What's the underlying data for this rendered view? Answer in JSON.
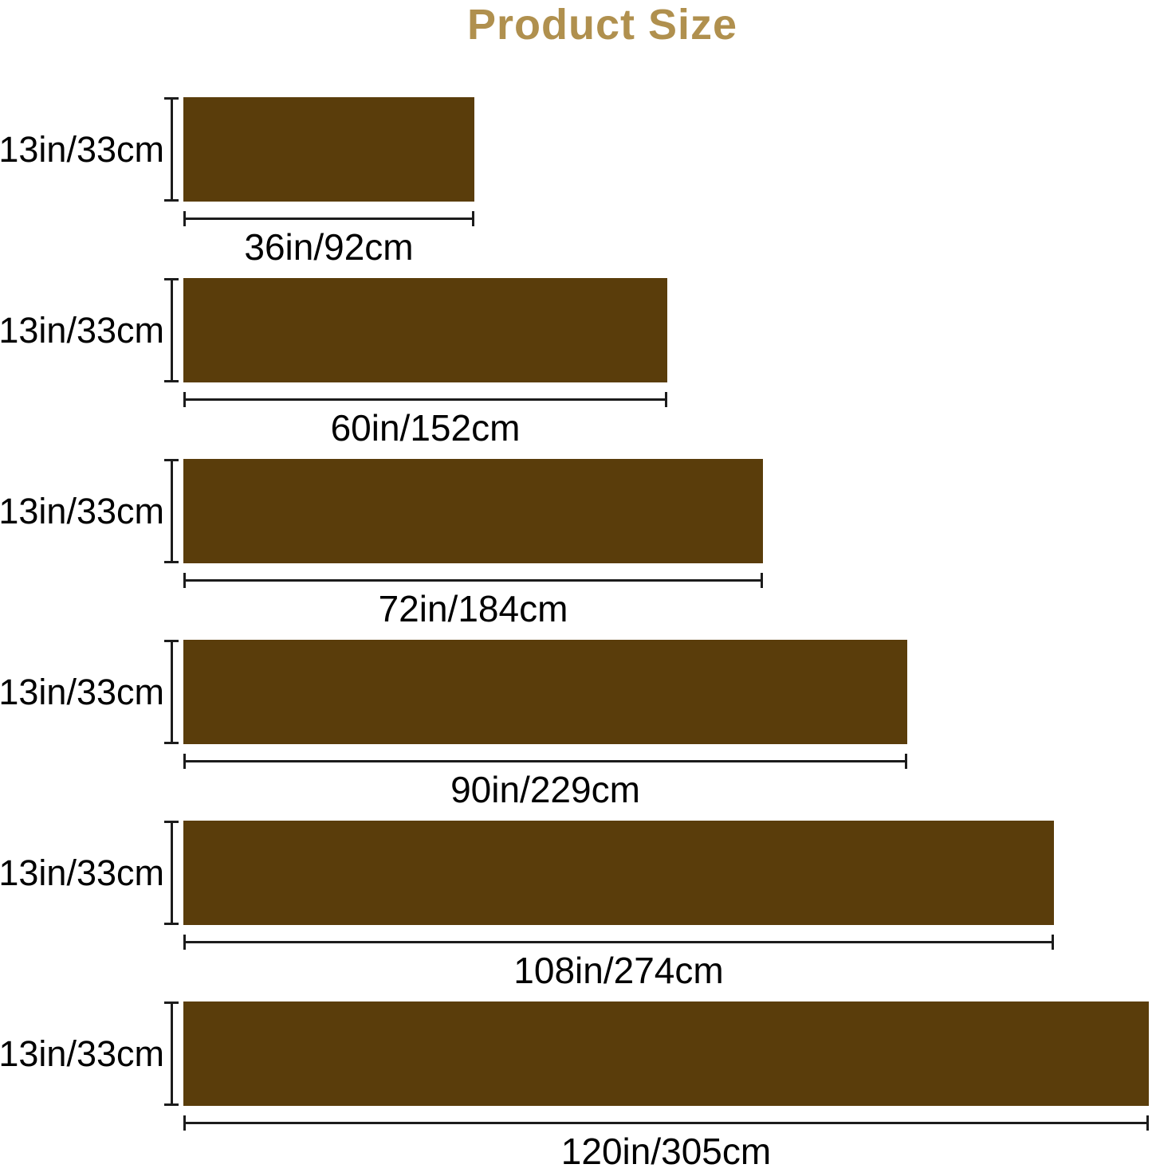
{
  "title": "Product Size",
  "colors": {
    "bar_fill": "#5a3d0b",
    "title_text": "#b0904e",
    "dimension_line": "#1c1c1c",
    "label_text": "#000000",
    "background": "#ffffff"
  },
  "rows": [
    {
      "height_label": "13in/33cm",
      "width_label": "36in/92cm",
      "height_in": 13,
      "height_cm": 33,
      "width_in": 36,
      "width_cm": 92
    },
    {
      "height_label": "13in/33cm",
      "width_label": "60in/152cm",
      "height_in": 13,
      "height_cm": 33,
      "width_in": 60,
      "width_cm": 152
    },
    {
      "height_label": "13in/33cm",
      "width_label": "72in/184cm",
      "height_in": 13,
      "height_cm": 33,
      "width_in": 72,
      "width_cm": 184
    },
    {
      "height_label": "13in/33cm",
      "width_label": "90in/229cm",
      "height_in": 13,
      "height_cm": 33,
      "width_in": 90,
      "width_cm": 229
    },
    {
      "height_label": "13in/33cm",
      "width_label": "108in/274cm",
      "height_in": 13,
      "height_cm": 33,
      "width_in": 108,
      "width_cm": 274
    },
    {
      "height_label": "13in/33cm",
      "width_label": "120in/305cm",
      "height_in": 13,
      "height_cm": 33,
      "width_in": 120,
      "width_cm": 305
    }
  ]
}
